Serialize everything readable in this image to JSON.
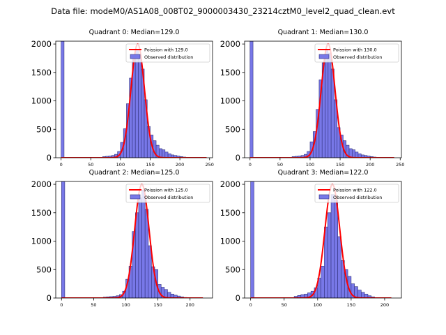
{
  "figure_title": "Data file: modeM0/AS1A08_008T02_9000003430_23214cztM0_level2_quad_clean.evt",
  "colors": {
    "bar_fill": "#7878e8",
    "bar_edge": "#30307a",
    "curve": "#ff0000"
  },
  "chart_data": [
    {
      "type": "bar",
      "title": "Quadrant 0: Median=129.0",
      "xlim": [
        -9,
        255
      ],
      "ylim": [
        0,
        2050
      ],
      "xticks": [
        0,
        50,
        100,
        150,
        200,
        250
      ],
      "yticks": [
        0,
        500,
        1000,
        1500,
        2000
      ],
      "bin_width": 5,
      "bins": [
        {
          "x": 0,
          "y": 2050
        },
        {
          "x": 70,
          "y": 20
        },
        {
          "x": 75,
          "y": 25
        },
        {
          "x": 80,
          "y": 30
        },
        {
          "x": 85,
          "y": 40
        },
        {
          "x": 90,
          "y": 60
        },
        {
          "x": 95,
          "y": 110
        },
        {
          "x": 100,
          "y": 270
        },
        {
          "x": 105,
          "y": 510
        },
        {
          "x": 110,
          "y": 950
        },
        {
          "x": 115,
          "y": 1400
        },
        {
          "x": 120,
          "y": 1760
        },
        {
          "x": 125,
          "y": 1900
        },
        {
          "x": 130,
          "y": 1810
        },
        {
          "x": 135,
          "y": 1560
        },
        {
          "x": 140,
          "y": 1020
        },
        {
          "x": 145,
          "y": 550
        },
        {
          "x": 150,
          "y": 400
        },
        {
          "x": 155,
          "y": 300
        },
        {
          "x": 160,
          "y": 220
        },
        {
          "x": 165,
          "y": 160
        },
        {
          "x": 170,
          "y": 140
        },
        {
          "x": 175,
          "y": 100
        },
        {
          "x": 180,
          "y": 70
        },
        {
          "x": 185,
          "y": 50
        },
        {
          "x": 190,
          "y": 40
        },
        {
          "x": 195,
          "y": 30
        },
        {
          "x": 200,
          "y": 20
        },
        {
          "x": 205,
          "y": 12
        }
      ],
      "curve": {
        "mean": 129.0,
        "peak": 2000,
        "range": [
          0,
          245
        ]
      },
      "legend": [
        "Poission with 129.0",
        "Observed distribution"
      ]
    },
    {
      "type": "bar",
      "title": "Quadrant 1: Median=130.0",
      "xlim": [
        -9,
        252
      ],
      "ylim": [
        0,
        2050
      ],
      "xticks": [
        0,
        50,
        100,
        150,
        200,
        250
      ],
      "yticks": [
        0,
        500,
        1000,
        1500,
        2000
      ],
      "bin_width": 5,
      "bins": [
        {
          "x": 0,
          "y": 2050
        },
        {
          "x": 70,
          "y": 20
        },
        {
          "x": 75,
          "y": 25
        },
        {
          "x": 80,
          "y": 30
        },
        {
          "x": 85,
          "y": 40
        },
        {
          "x": 90,
          "y": 60
        },
        {
          "x": 95,
          "y": 110
        },
        {
          "x": 100,
          "y": 280
        },
        {
          "x": 105,
          "y": 460
        },
        {
          "x": 110,
          "y": 850
        },
        {
          "x": 115,
          "y": 1370
        },
        {
          "x": 120,
          "y": 1670
        },
        {
          "x": 125,
          "y": 1900
        },
        {
          "x": 130,
          "y": 1840
        },
        {
          "x": 135,
          "y": 1560
        },
        {
          "x": 140,
          "y": 1020
        },
        {
          "x": 145,
          "y": 530
        },
        {
          "x": 150,
          "y": 400
        },
        {
          "x": 155,
          "y": 300
        },
        {
          "x": 160,
          "y": 220
        },
        {
          "x": 165,
          "y": 160
        },
        {
          "x": 170,
          "y": 140
        },
        {
          "x": 175,
          "y": 100
        },
        {
          "x": 180,
          "y": 70
        },
        {
          "x": 185,
          "y": 50
        },
        {
          "x": 190,
          "y": 40
        },
        {
          "x": 195,
          "y": 30
        },
        {
          "x": 200,
          "y": 20
        },
        {
          "x": 205,
          "y": 12
        }
      ],
      "curve": {
        "mean": 130.0,
        "peak": 2000,
        "range": [
          0,
          240
        ]
      },
      "legend": [
        "Poission with 130.0",
        "Observed distribution"
      ]
    },
    {
      "type": "bar",
      "title": "Quadrant 2: Median=125.0",
      "xlim": [
        -9,
        235
      ],
      "ylim": [
        0,
        2050
      ],
      "xticks": [
        0,
        50,
        100,
        150,
        200
      ],
      "yticks": [
        0,
        500,
        1000,
        1500,
        2000
      ],
      "bin_width": 5,
      "bins": [
        {
          "x": 0,
          "y": 2050
        },
        {
          "x": 65,
          "y": 15
        },
        {
          "x": 70,
          "y": 20
        },
        {
          "x": 75,
          "y": 25
        },
        {
          "x": 80,
          "y": 30
        },
        {
          "x": 85,
          "y": 40
        },
        {
          "x": 90,
          "y": 60
        },
        {
          "x": 95,
          "y": 120
        },
        {
          "x": 100,
          "y": 330
        },
        {
          "x": 105,
          "y": 560
        },
        {
          "x": 110,
          "y": 1170
        },
        {
          "x": 115,
          "y": 1500
        },
        {
          "x": 120,
          "y": 1760
        },
        {
          "x": 125,
          "y": 1900
        },
        {
          "x": 130,
          "y": 1560
        },
        {
          "x": 135,
          "y": 920
        },
        {
          "x": 140,
          "y": 550
        },
        {
          "x": 145,
          "y": 500
        },
        {
          "x": 150,
          "y": 240
        },
        {
          "x": 155,
          "y": 190
        },
        {
          "x": 160,
          "y": 150
        },
        {
          "x": 165,
          "y": 100
        },
        {
          "x": 170,
          "y": 70
        },
        {
          "x": 175,
          "y": 50
        },
        {
          "x": 180,
          "y": 35
        },
        {
          "x": 185,
          "y": 20
        },
        {
          "x": 190,
          "y": 10
        }
      ],
      "curve": {
        "mean": 125.0,
        "peak": 2000,
        "range": [
          0,
          220
        ]
      },
      "legend": [
        "Poission with 125.0",
        "Observed distribution"
      ]
    },
    {
      "type": "bar",
      "title": "Quadrant 3: Median=122.0",
      "xlim": [
        -9,
        225
      ],
      "ylim": [
        0,
        2050
      ],
      "xticks": [
        0,
        50,
        100,
        150,
        200
      ],
      "yticks": [
        0,
        500,
        1000,
        1500,
        2000
      ],
      "bin_width": 5,
      "bins": [
        {
          "x": 0,
          "y": 2050
        },
        {
          "x": 65,
          "y": 30
        },
        {
          "x": 70,
          "y": 45
        },
        {
          "x": 75,
          "y": 60
        },
        {
          "x": 80,
          "y": 70
        },
        {
          "x": 85,
          "y": 90
        },
        {
          "x": 90,
          "y": 120
        },
        {
          "x": 95,
          "y": 180
        },
        {
          "x": 100,
          "y": 350
        },
        {
          "x": 105,
          "y": 560
        },
        {
          "x": 110,
          "y": 1250
        },
        {
          "x": 115,
          "y": 1500
        },
        {
          "x": 120,
          "y": 1820
        },
        {
          "x": 125,
          "y": 1720
        },
        {
          "x": 130,
          "y": 1080
        },
        {
          "x": 135,
          "y": 660
        },
        {
          "x": 140,
          "y": 500
        },
        {
          "x": 145,
          "y": 380
        },
        {
          "x": 150,
          "y": 250
        },
        {
          "x": 155,
          "y": 200
        },
        {
          "x": 160,
          "y": 140
        },
        {
          "x": 165,
          "y": 100
        },
        {
          "x": 170,
          "y": 70
        },
        {
          "x": 175,
          "y": 40
        },
        {
          "x": 180,
          "y": 20
        }
      ],
      "curve": {
        "mean": 122.0,
        "peak": 2000,
        "range": [
          0,
          210
        ]
      },
      "legend": [
        "Poission with 122.0",
        "Observed distribution"
      ]
    }
  ]
}
